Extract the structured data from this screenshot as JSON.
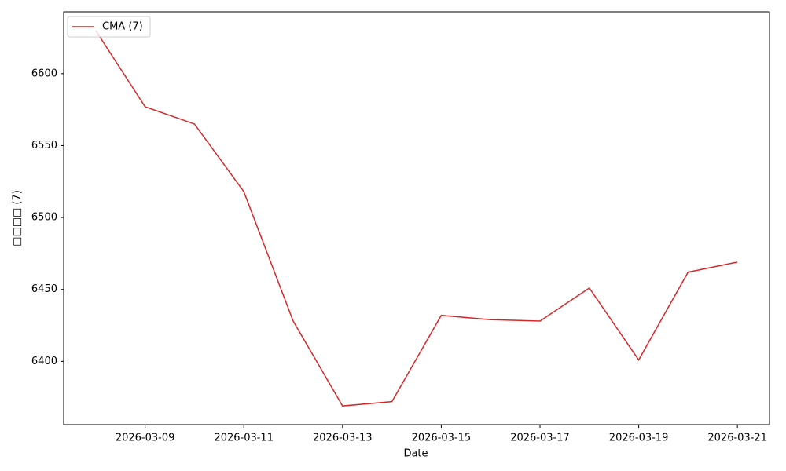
{
  "chart_data": {
    "type": "line",
    "x_label": "Date",
    "y_label": "□□□□ (7)",
    "x": [
      "2026-03-08",
      "2026-03-09",
      "2026-03-10",
      "2026-03-11",
      "2026-03-12",
      "2026-03-13",
      "2026-03-14",
      "2026-03-15",
      "2026-03-16",
      "2026-03-17",
      "2026-03-18",
      "2026-03-19",
      "2026-03-20",
      "2026-03-21"
    ],
    "series": [
      {
        "name": "CMA (7)",
        "color": "#d62728",
        "values": [
          6630,
          6577,
          6565,
          6518,
          6428,
          6369,
          6372,
          6432,
          6429,
          6428,
          6451,
          6401,
          6462,
          6469
        ]
      }
    ],
    "xlim": [
      "2026-03-07T08:24",
      "2026-03-21T15:36"
    ],
    "xticks": [
      "2026-03-09",
      "2026-03-11",
      "2026-03-13",
      "2026-03-15",
      "2026-03-17",
      "2026-03-19",
      "2026-03-21"
    ],
    "ylim": [
      6356,
      6643
    ],
    "yticks": [
      6400,
      6450,
      6500,
      6550,
      6600
    ],
    "grid": false,
    "legend": "upper-left"
  }
}
